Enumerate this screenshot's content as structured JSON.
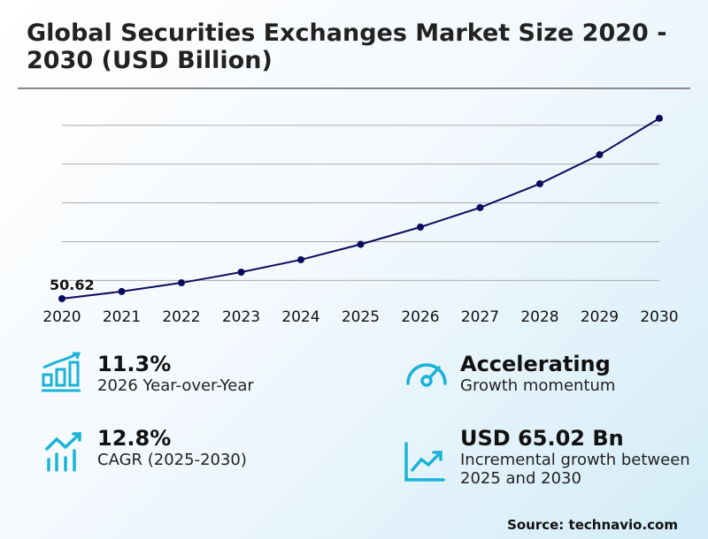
{
  "title": "Global Securities Exchanges Market Size 2020 - 2030 (USD Billion)",
  "chart_data": {
    "type": "line",
    "title": "Global Securities Exchanges Market Size 2020 - 2030 (USD Billion)",
    "categories": [
      "2020",
      "2021",
      "2022",
      "2023",
      "2024",
      "2025",
      "2026",
      "2027",
      "2028",
      "2029",
      "2030"
    ],
    "values": [
      50.62,
      54.3,
      58.8,
      64.3,
      70.7,
      78.66,
      87.55,
      97.6,
      109.9,
      124.9,
      143.68
    ],
    "data_labels": {
      "2020": "50.62"
    },
    "ylim": [
      41.5,
      150
    ],
    "gridlines": [
      60,
      80,
      100,
      120,
      140
    ],
    "grid": true,
    "line_color": "#0b0b5e"
  },
  "kpis": [
    {
      "value": "11.3%",
      "label": "2026 Year-over-Year",
      "icon": "bar-chart-growth-icon"
    },
    {
      "value": "Accelerating",
      "label": "Growth momentum",
      "icon": "speedometer-icon"
    },
    {
      "value": "12.8%",
      "label": "CAGR (2025-2030)",
      "icon": "trend-bars-icon"
    },
    {
      "value": "USD 65.02 Bn",
      "label": "Incremental growth between 2025 and 2030",
      "icon": "line-chart-up-icon"
    }
  ],
  "accent": "#1ab3d8",
  "source": "Source: technavio.com"
}
